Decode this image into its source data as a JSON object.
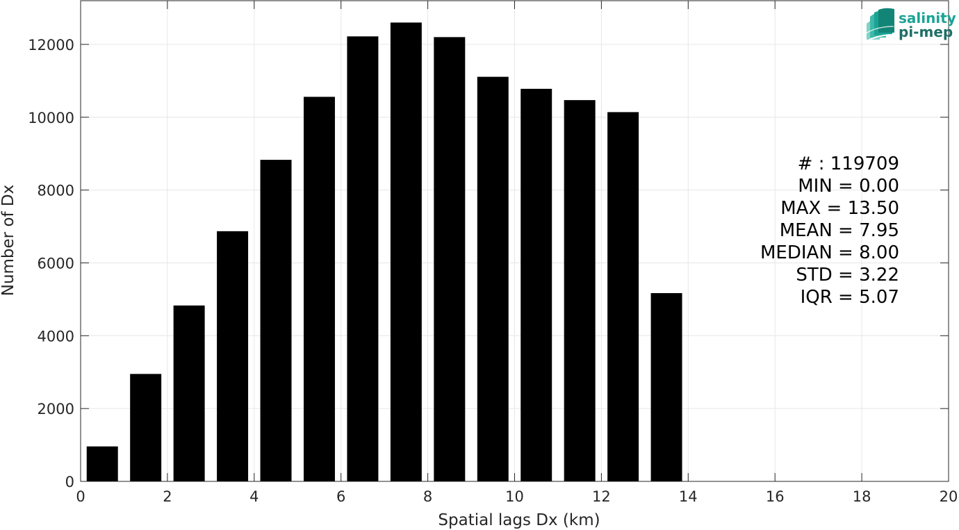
{
  "chart_data": {
    "type": "bar",
    "x": [
      0.5,
      1.5,
      2.5,
      3.5,
      4.5,
      5.5,
      6.5,
      7.5,
      8.5,
      9.5,
      10.5,
      11.5,
      12.5,
      13.5,
      14.5,
      15.5,
      16.5,
      17.5,
      18.5,
      19.5
    ],
    "values": [
      960,
      2950,
      4830,
      6870,
      8830,
      10560,
      12220,
      12600,
      12200,
      11110,
      10780,
      10470,
      10140,
      5170,
      0,
      0,
      0,
      0,
      0,
      0
    ],
    "bar_color": "#000000",
    "xlabel": "Spatial lags Dx (km)",
    "ylabel": "Number of Dx",
    "xlim": [
      0,
      20
    ],
    "ylim": [
      0,
      13200
    ],
    "xticks": [
      0,
      2,
      4,
      6,
      8,
      10,
      12,
      14,
      16,
      18,
      20
    ],
    "yticks": [
      0,
      2000,
      4000,
      6000,
      8000,
      10000,
      12000
    ],
    "grid": true,
    "annotations": [
      "# : 119709",
      "MIN = 0.00",
      "MAX =  13.50",
      "MEAN = 7.95",
      "MEDIAN = 8.00",
      "STD = 3.22",
      "IQR = 5.07"
    ]
  },
  "logo": {
    "line1": "salinity",
    "line2": "pi-mep",
    "color_primary": "#1aa394",
    "color_secondary": "#1f6f66"
  }
}
